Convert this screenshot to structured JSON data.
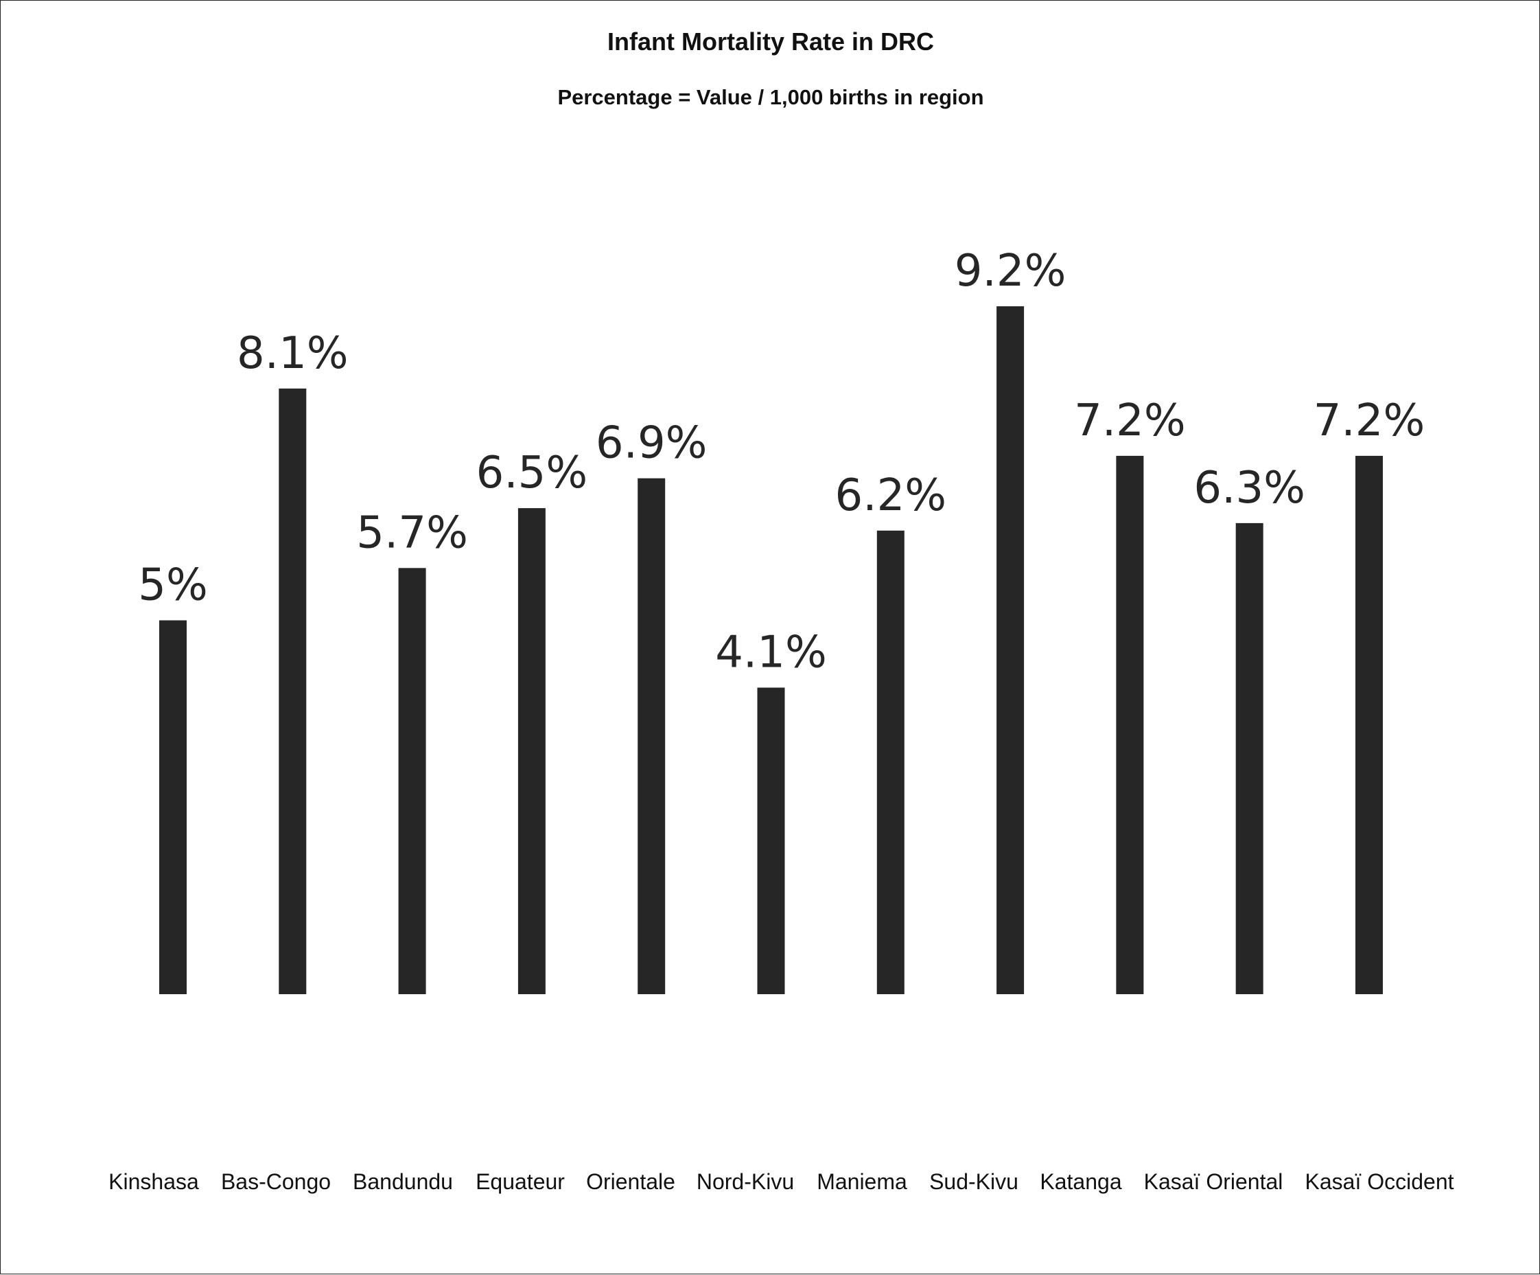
{
  "chart_data": {
    "type": "bar",
    "title": "Infant Mortality Rate in DRC",
    "subtitle": "Percentage = Value / 1,000 births in region",
    "categories": [
      "Kinshasa",
      "Bas-Congo",
      "Bandundu",
      "Equateur",
      "Orientale",
      "Nord-Kivu",
      "Maniema",
      "Sud-Kivu",
      "Katanga",
      "Kasaï Oriental",
      "Kasaï Occident"
    ],
    "values": [
      5,
      8.1,
      5.7,
      6.5,
      6.9,
      4.1,
      6.2,
      9.2,
      7.2,
      6.3,
      7.2
    ],
    "data_labels": [
      "5%",
      "8.1%",
      "5.7%",
      "6.5%",
      "6.9%",
      "4.1%",
      "6.2%",
      "9.2%",
      "7.2%",
      "6.3%",
      "7.2%"
    ],
    "xlabel": "",
    "ylabel": "",
    "ylim": [
      0,
      10
    ],
    "grid": false,
    "legend": "none",
    "bar_color": "#262626"
  }
}
